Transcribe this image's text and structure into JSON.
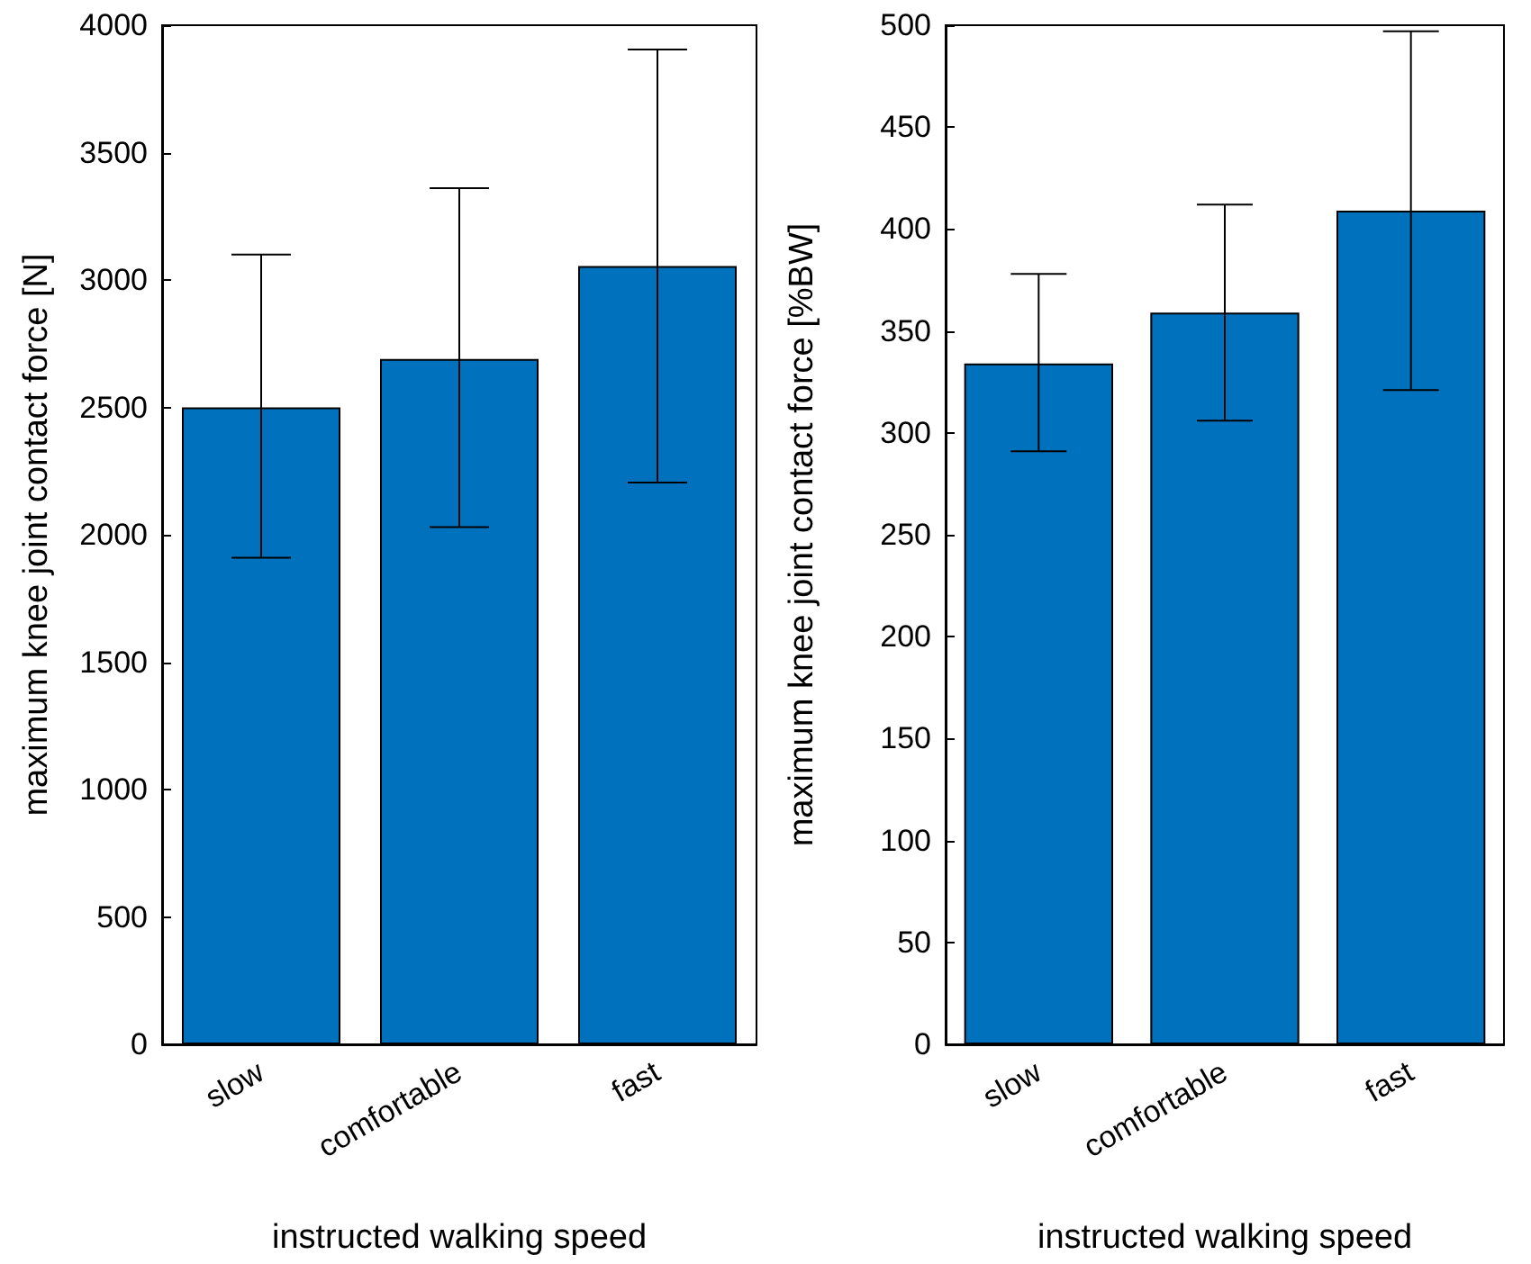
{
  "chart_data": [
    {
      "type": "bar",
      "xlabel": "instructed walking speed",
      "ylabel": "maximum knee joint contact force [N]",
      "categories": [
        "slow",
        "comfortable",
        "fast"
      ],
      "values": [
        2500,
        2690,
        3055
      ],
      "errors": [
        [
          1910,
          3100
        ],
        [
          2030,
          3360
        ],
        [
          2205,
          3905
        ]
      ],
      "color": "#0072bd",
      "ylim": [
        0,
        4000
      ],
      "yticks": [
        0,
        500,
        1000,
        1500,
        2000,
        2500,
        3000,
        3500,
        4000
      ],
      "grid": false
    },
    {
      "type": "bar",
      "xlabel": "instructed walking speed",
      "ylabel": "maximum knee joint contact force [%BW]",
      "categories": [
        "slow",
        "comfortable",
        "fast"
      ],
      "values": [
        334,
        359,
        409
      ],
      "errors": [
        [
          291,
          378
        ],
        [
          306,
          412
        ],
        [
          321,
          497
        ]
      ],
      "color": "#0072bd",
      "ylim": [
        0,
        500
      ],
      "yticks": [
        0,
        50,
        100,
        150,
        200,
        250,
        300,
        350,
        400,
        450,
        500
      ],
      "grid": false
    }
  ]
}
